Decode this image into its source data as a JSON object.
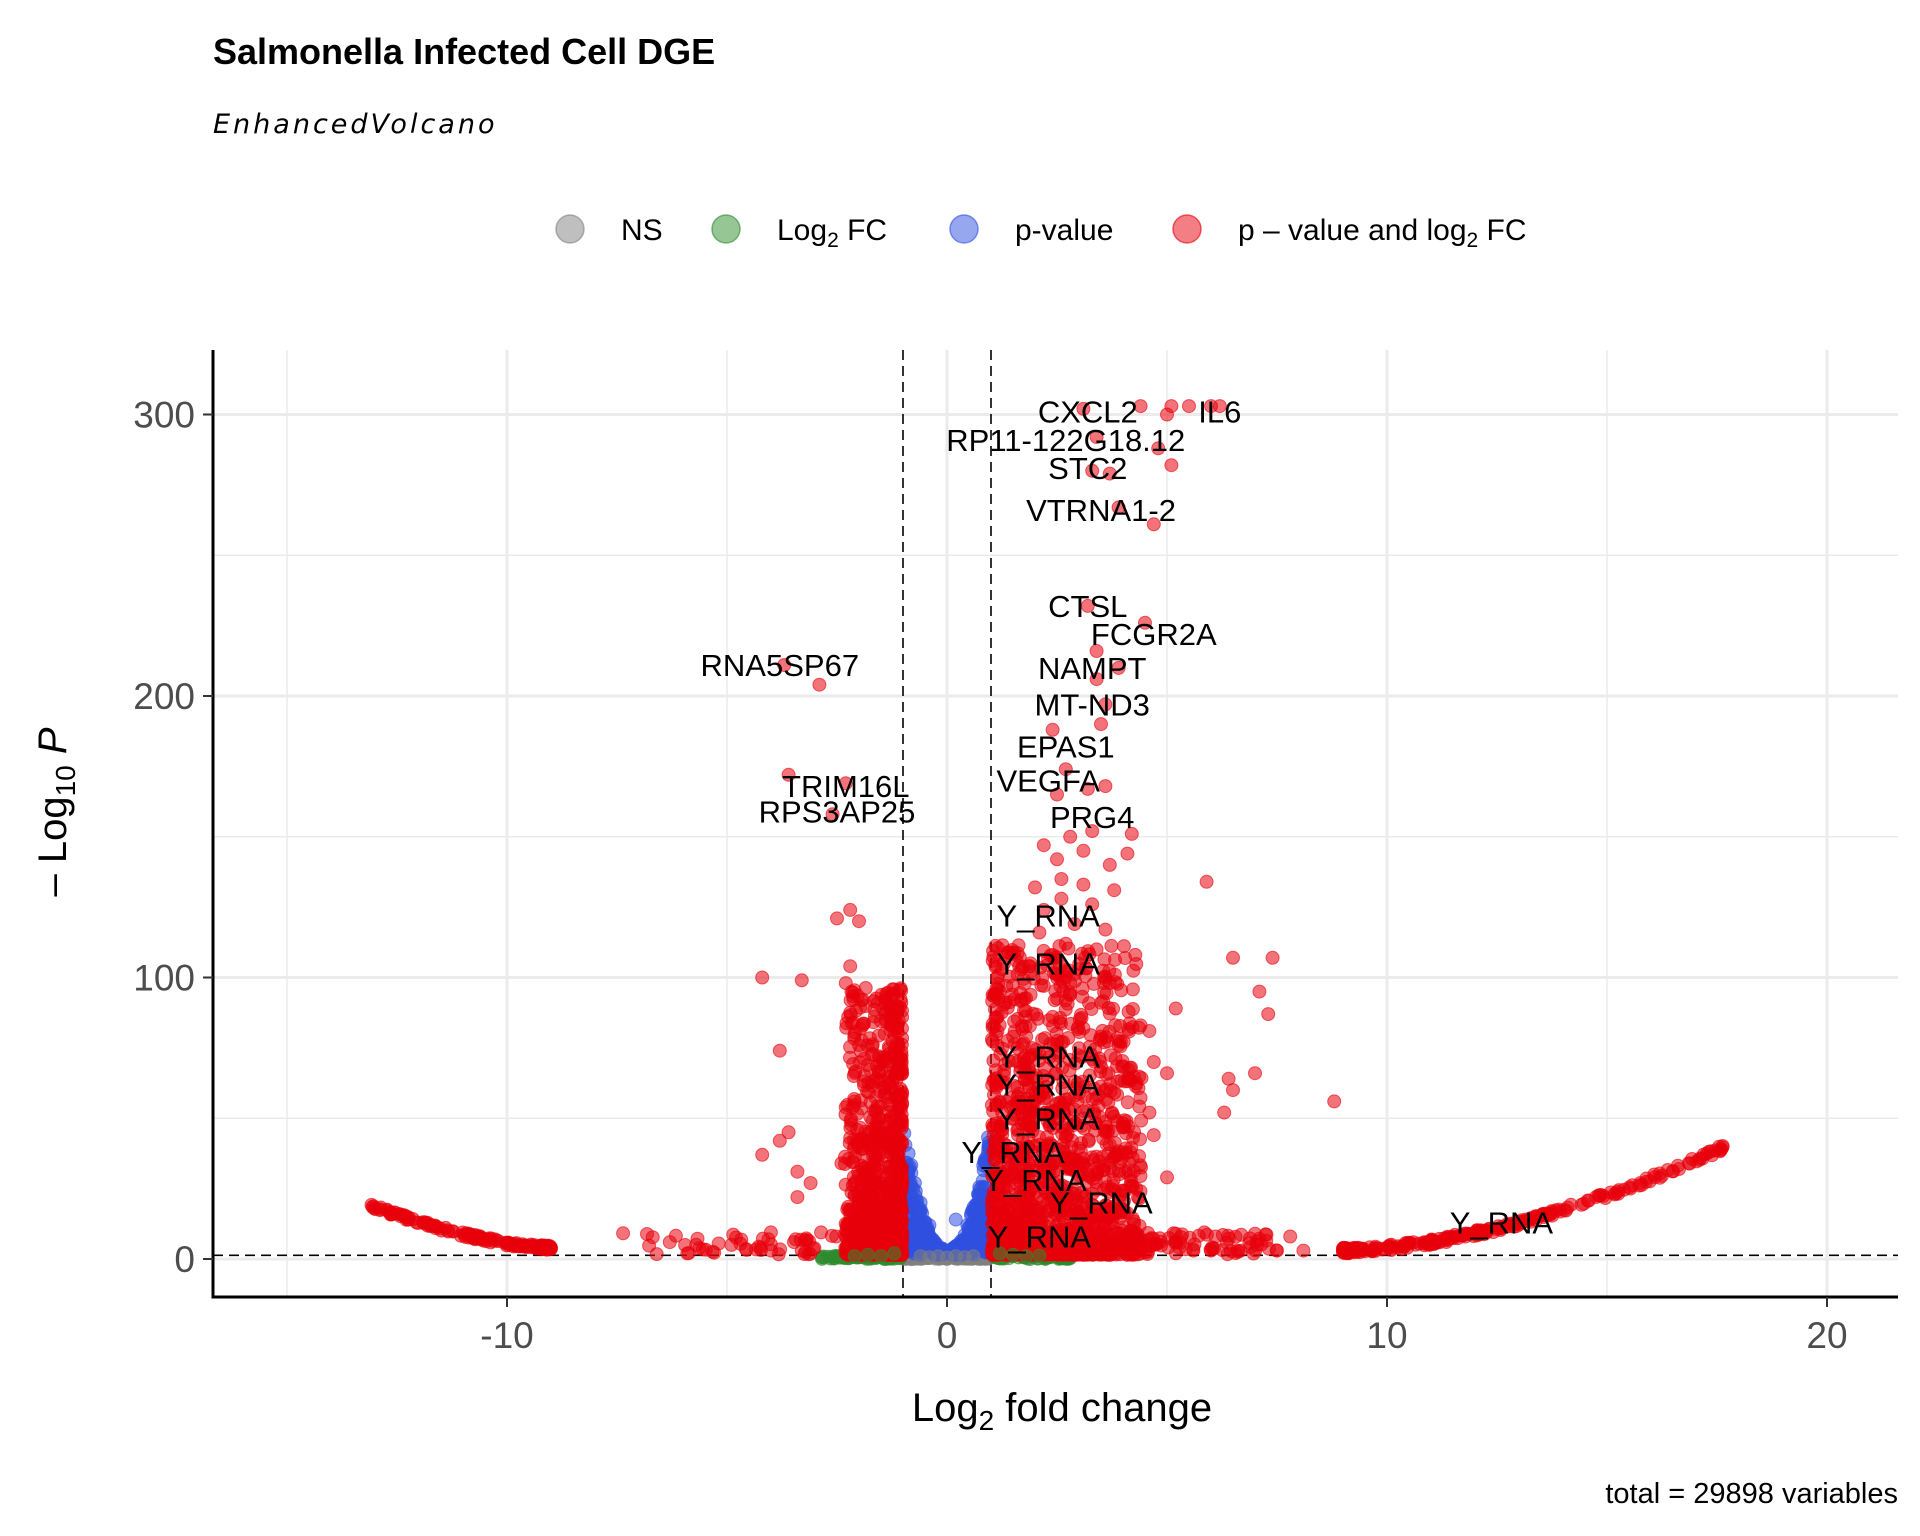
{
  "chart_data": {
    "type": "scatter",
    "title": "Salmonella Infected Cell DGE",
    "subtitle": "EnhancedVolcano",
    "xlabel": "Log2 fold change",
    "ylabel": "-Log10 P",
    "caption": "total = 29898 variables",
    "xlim": [
      -16.5,
      21.7
    ],
    "ylim": [
      -15,
      322
    ],
    "x_ticks": [
      -10,
      0,
      10,
      20
    ],
    "y_ticks": [
      0,
      100,
      200,
      300
    ],
    "grid": true,
    "fc_cutoff": 1,
    "p_cutoff_log10": 1.3,
    "legend": {
      "placement": "top",
      "items": [
        {
          "key": "NS",
          "label": "NS",
          "color": "#808080"
        },
        {
          "key": "FC",
          "label": "Log",
          "sub": "2",
          "suffix": " FC",
          "color": "#2e8b2e"
        },
        {
          "key": "P",
          "label": "p-value",
          "color": "#3050e0"
        },
        {
          "key": "FC_P",
          "label": "p – value and log",
          "sub": "2",
          "suffix": " FC",
          "color": "#e8000b"
        }
      ]
    },
    "labels": [
      {
        "text": "CXCL2",
        "x": 3.2,
        "y": 301
      },
      {
        "text": "IL6",
        "x": 6.2,
        "y": 301
      },
      {
        "text": "RP11-122G18.12",
        "x": 2.7,
        "y": 291
      },
      {
        "text": "STC2",
        "x": 3.2,
        "y": 281
      },
      {
        "text": "VTRNA1-2",
        "x": 3.5,
        "y": 266
      },
      {
        "text": "CTSL",
        "x": 3.2,
        "y": 232
      },
      {
        "text": "FCGR2A",
        "x": 4.7,
        "y": 222
      },
      {
        "text": "RNA5SP67",
        "x": -3.8,
        "y": 211
      },
      {
        "text": "NAMPT",
        "x": 3.3,
        "y": 210
      },
      {
        "text": "MT-ND3",
        "x": 3.3,
        "y": 197
      },
      {
        "text": "EPAS1",
        "x": 2.7,
        "y": 182
      },
      {
        "text": "TRIM16L",
        "x": -2.3,
        "y": 168
      },
      {
        "text": "VEGFA",
        "x": 2.3,
        "y": 170
      },
      {
        "text": "RPS3AP25",
        "x": -2.5,
        "y": 159
      },
      {
        "text": "PRG4",
        "x": 3.3,
        "y": 157
      },
      {
        "text": "Y_RNA",
        "x": 2.3,
        "y": 122
      },
      {
        "text": "Y_RNA",
        "x": 2.3,
        "y": 105
      },
      {
        "text": "Y_RNA",
        "x": 2.3,
        "y": 72
      },
      {
        "text": "Y_RNA",
        "x": 2.3,
        "y": 62
      },
      {
        "text": "Y_RNA",
        "x": 2.3,
        "y": 50
      },
      {
        "text": "Y_RNA",
        "x": 1.5,
        "y": 38
      },
      {
        "text": "Y_RNA",
        "x": 2.0,
        "y": 28
      },
      {
        "text": "Y_RNA",
        "x": 3.5,
        "y": 20
      },
      {
        "text": "Y_RNA",
        "x": 2.1,
        "y": 8
      },
      {
        "text": "Y_RNA",
        "x": 12.6,
        "y": 13
      }
    ],
    "points": {
      "FC_P": [
        [
          4.4,
          303
        ],
        [
          5.1,
          303
        ],
        [
          5.5,
          303
        ],
        [
          6.0,
          303
        ],
        [
          6.2,
          303
        ],
        [
          3.1,
          302
        ],
        [
          5.0,
          300
        ],
        [
          3.4,
          292
        ],
        [
          4.8,
          288
        ],
        [
          5.1,
          282
        ],
        [
          3.3,
          280
        ],
        [
          3.7,
          279
        ],
        [
          3.9,
          267
        ],
        [
          4.7,
          261
        ],
        [
          3.2,
          232
        ],
        [
          4.5,
          226
        ],
        [
          3.4,
          216
        ],
        [
          3.9,
          210
        ],
        [
          -3.7,
          211
        ],
        [
          -2.9,
          204
        ],
        [
          3.4,
          206
        ],
        [
          3.6,
          197
        ],
        [
          3.5,
          190
        ],
        [
          2.4,
          188
        ],
        [
          2.7,
          174
        ],
        [
          3.2,
          167
        ],
        [
          -3.6,
          172
        ],
        [
          -2.3,
          169
        ],
        [
          2.5,
          165
        ],
        [
          3.6,
          168
        ],
        [
          -2.6,
          158
        ],
        [
          3.3,
          152
        ],
        [
          4.2,
          151
        ],
        [
          2.8,
          150
        ],
        [
          2.2,
          147
        ],
        [
          3.1,
          145
        ],
        [
          4.1,
          144
        ],
        [
          2.5,
          142
        ],
        [
          3.7,
          140
        ],
        [
          2.6,
          135
        ],
        [
          5.9,
          134
        ],
        [
          3.1,
          133
        ],
        [
          2.0,
          132
        ],
        [
          3.8,
          131
        ],
        [
          2.6,
          128
        ],
        [
          3.3,
          126
        ],
        [
          2.2,
          124
        ],
        [
          -2.2,
          124
        ],
        [
          -2.5,
          121
        ],
        [
          -2.0,
          120
        ],
        [
          2.9,
          119
        ],
        [
          3.6,
          117
        ],
        [
          2.1,
          116
        ],
        [
          2.7,
          112
        ],
        [
          3.4,
          110
        ],
        [
          2.4,
          108
        ],
        [
          6.5,
          107
        ],
        [
          7.4,
          107
        ],
        [
          1.9,
          105
        ],
        [
          -2.2,
          104
        ],
        [
          3.0,
          103
        ],
        [
          2.5,
          101
        ],
        [
          -4.2,
          100
        ],
        [
          -3.3,
          99
        ],
        [
          -2.3,
          98
        ],
        [
          3.7,
          98
        ],
        [
          2.2,
          97
        ],
        [
          7.1,
          95
        ],
        [
          2.8,
          94
        ],
        [
          1.7,
          92
        ],
        [
          3.5,
          91
        ],
        [
          5.2,
          89
        ],
        [
          7.3,
          87
        ],
        [
          2.4,
          86
        ],
        [
          4.4,
          83
        ],
        [
          3.1,
          82
        ],
        [
          4.6,
          81
        ],
        [
          1.8,
          79
        ],
        [
          2.6,
          77
        ],
        [
          3.9,
          76
        ],
        [
          -2.0,
          76
        ],
        [
          -3.8,
          74
        ],
        [
          2.1,
          73
        ],
        [
          3.3,
          71
        ],
        [
          4.7,
          70
        ],
        [
          5.0,
          66
        ],
        [
          6.4,
          64
        ],
        [
          2.9,
          63
        ],
        [
          7.0,
          66
        ],
        [
          6.5,
          60
        ],
        [
          1.6,
          61
        ],
        [
          3.8,
          59
        ],
        [
          2.2,
          57
        ],
        [
          8.8,
          56
        ],
        [
          -2.1,
          56
        ],
        [
          6.3,
          52
        ],
        [
          2.9,
          53
        ],
        [
          4.6,
          52
        ],
        [
          -3.6,
          45
        ],
        [
          1.9,
          47
        ],
        [
          3.6,
          45
        ],
        [
          -2.2,
          43
        ],
        [
          4.7,
          44
        ],
        [
          -3.8,
          42
        ],
        [
          2.3,
          40
        ],
        [
          -4.2,
          37
        ],
        [
          3.9,
          37
        ],
        [
          -2.4,
          34
        ],
        [
          1.6,
          35
        ],
        [
          2.8,
          32
        ],
        [
          -3.4,
          31
        ],
        [
          3.2,
          30
        ],
        [
          5.0,
          29
        ],
        [
          -3.1,
          27
        ],
        [
          1.8,
          26
        ],
        [
          4.3,
          25
        ],
        [
          2.7,
          23
        ],
        [
          -3.4,
          22
        ],
        [
          2.2,
          21
        ],
        [
          3.6,
          19
        ],
        [
          -2.0,
          18
        ],
        [
          1.4,
          17
        ],
        [
          -6.3,
          6
        ],
        [
          -5.7,
          5
        ],
        [
          -4.9,
          5
        ],
        [
          -4.0,
          3
        ],
        [
          -3.3,
          3
        ],
        [
          5.2,
          9
        ],
        [
          6.1,
          8
        ],
        [
          7.0,
          9
        ],
        [
          7.8,
          8
        ],
        [
          5.6,
          3
        ],
        [
          6.0,
          3
        ],
        [
          6.6,
          3
        ],
        [
          7.5,
          3
        ],
        [
          8.1,
          3
        ]
      ],
      "P": [
        [
          0.2,
          14
        ],
        [
          -0.6,
          20
        ],
        [
          -0.4,
          12
        ],
        [
          0.7,
          18
        ],
        [
          0.5,
          10
        ]
      ],
      "FC_NS": [
        [
          -1.2,
          2
        ],
        [
          -1.5,
          1
        ],
        [
          -1.8,
          1.5
        ],
        [
          -2.1,
          1
        ],
        [
          1.2,
          2
        ],
        [
          1.5,
          1.5
        ],
        [
          1.8,
          1
        ],
        [
          2.1,
          1.2
        ]
      ],
      "NS": [
        [
          0,
          0.5
        ],
        [
          -0.2,
          1
        ],
        [
          0.2,
          1
        ],
        [
          -0.4,
          0.6
        ],
        [
          0.4,
          0.6
        ],
        [
          -0.6,
          1
        ],
        [
          0.6,
          1
        ]
      ]
    },
    "bands": {
      "right_curve": {
        "x_from": 9.0,
        "x_to": 17.7,
        "y_from": 3,
        "y_to": 40
      },
      "left_curve": {
        "x_from": -9.0,
        "x_to": -13.1,
        "y_from": 4,
        "y_to": 19
      }
    }
  }
}
